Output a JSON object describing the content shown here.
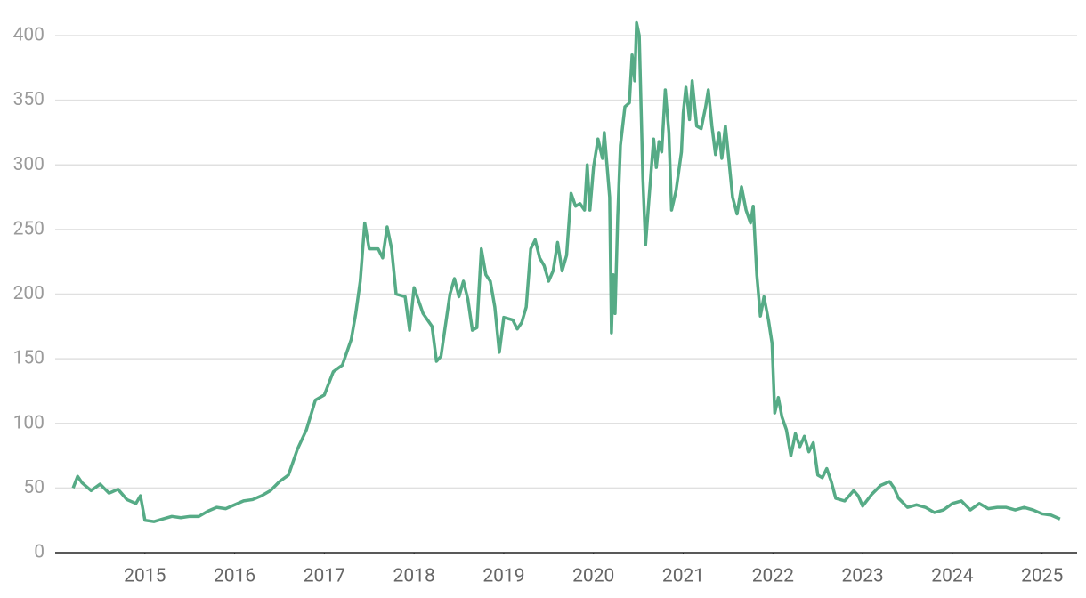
{
  "chart_data": {
    "type": "line",
    "color": "#56ab86",
    "grid": true,
    "x": [
      2014.2,
      2014.25,
      2014.3,
      2014.4,
      2014.5,
      2014.6,
      2014.7,
      2014.8,
      2014.9,
      2014.95,
      2015.0,
      2015.1,
      2015.2,
      2015.3,
      2015.4,
      2015.5,
      2015.6,
      2015.7,
      2015.8,
      2015.9,
      2016.0,
      2016.1,
      2016.2,
      2016.3,
      2016.4,
      2016.5,
      2016.6,
      2016.7,
      2016.8,
      2016.9,
      2017.0,
      2017.1,
      2017.2,
      2017.3,
      2017.35,
      2017.4,
      2017.45,
      2017.5,
      2017.6,
      2017.65,
      2017.7,
      2017.75,
      2017.8,
      2017.9,
      2017.95,
      2018.0,
      2018.1,
      2018.2,
      2018.25,
      2018.3,
      2018.4,
      2018.45,
      2018.5,
      2018.55,
      2018.6,
      2018.65,
      2018.7,
      2018.75,
      2018.8,
      2018.85,
      2018.9,
      2018.95,
      2019.0,
      2019.1,
      2019.15,
      2019.2,
      2019.25,
      2019.3,
      2019.35,
      2019.4,
      2019.45,
      2019.5,
      2019.55,
      2019.6,
      2019.65,
      2019.7,
      2019.75,
      2019.8,
      2019.85,
      2019.9,
      2019.93,
      2019.96,
      2020.0,
      2020.05,
      2020.1,
      2020.12,
      2020.15,
      2020.18,
      2020.2,
      2020.22,
      2020.24,
      2020.27,
      2020.3,
      2020.35,
      2020.4,
      2020.43,
      2020.46,
      2020.48,
      2020.51,
      2020.55,
      2020.58,
      2020.62,
      2020.67,
      2020.7,
      2020.73,
      2020.76,
      2020.8,
      2020.84,
      2020.87,
      2020.92,
      2020.96,
      2020.98,
      2021.0,
      2021.03,
      2021.07,
      2021.1,
      2021.15,
      2021.2,
      2021.25,
      2021.28,
      2021.32,
      2021.36,
      2021.4,
      2021.43,
      2021.47,
      2021.5,
      2021.55,
      2021.6,
      2021.65,
      2021.7,
      2021.75,
      2021.78,
      2021.82,
      2021.86,
      2021.9,
      2021.95,
      2021.99,
      2022.02,
      2022.06,
      2022.1,
      2022.15,
      2022.2,
      2022.25,
      2022.3,
      2022.35,
      2022.4,
      2022.45,
      2022.5,
      2022.55,
      2022.6,
      2022.65,
      2022.7,
      2022.8,
      2022.9,
      2022.95,
      2023.0,
      2023.1,
      2023.2,
      2023.3,
      2023.35,
      2023.4,
      2023.5,
      2023.6,
      2023.7,
      2023.8,
      2023.9,
      2024.0,
      2024.1,
      2024.2,
      2024.3,
      2024.4,
      2024.5,
      2024.6,
      2024.7,
      2024.8,
      2024.9,
      2025.0,
      2025.1,
      2025.2
    ],
    "values": [
      50,
      59,
      54,
      48,
      53,
      46,
      49,
      41,
      38,
      44,
      25,
      24,
      26,
      28,
      27,
      28,
      28,
      32,
      35,
      34,
      37,
      40,
      41,
      44,
      48,
      55,
      60,
      80,
      95,
      118,
      122,
      140,
      145,
      165,
      185,
      210,
      255,
      235,
      235,
      228,
      252,
      235,
      200,
      198,
      172,
      205,
      185,
      175,
      148,
      152,
      200,
      212,
      198,
      210,
      196,
      172,
      174,
      235,
      215,
      210,
      190,
      155,
      182,
      180,
      173,
      178,
      190,
      235,
      242,
      228,
      222,
      210,
      218,
      240,
      218,
      230,
      278,
      268,
      270,
      265,
      300,
      265,
      298,
      320,
      305,
      325,
      300,
      275,
      170,
      215,
      185,
      260,
      315,
      345,
      348,
      385,
      365,
      410,
      400,
      290,
      238,
      275,
      320,
      298,
      318,
      310,
      358,
      325,
      265,
      280,
      300,
      310,
      340,
      360,
      335,
      365,
      330,
      328,
      345,
      358,
      330,
      308,
      325,
      305,
      330,
      310,
      275,
      262,
      283,
      265,
      255,
      268,
      215,
      183,
      198,
      180,
      162,
      108,
      120,
      105,
      95,
      75,
      92,
      82,
      90,
      78,
      85,
      60,
      58,
      65,
      55,
      42,
      40,
      48,
      44,
      36,
      45,
      52,
      55,
      50,
      42,
      35,
      37,
      35,
      31,
      33,
      38,
      40,
      33,
      38,
      34,
      35,
      35,
      33,
      35,
      33,
      30,
      29,
      26
    ],
    "xlim": [
      2014,
      2025.39
    ],
    "xticks": [
      2015,
      2016,
      2017,
      2018,
      2019,
      2020,
      2021,
      2022,
      2023,
      2024,
      2025
    ],
    "ylim": [
      0,
      400
    ],
    "yticks": [
      0,
      50,
      100,
      150,
      200,
      250,
      300,
      350,
      400
    ]
  }
}
